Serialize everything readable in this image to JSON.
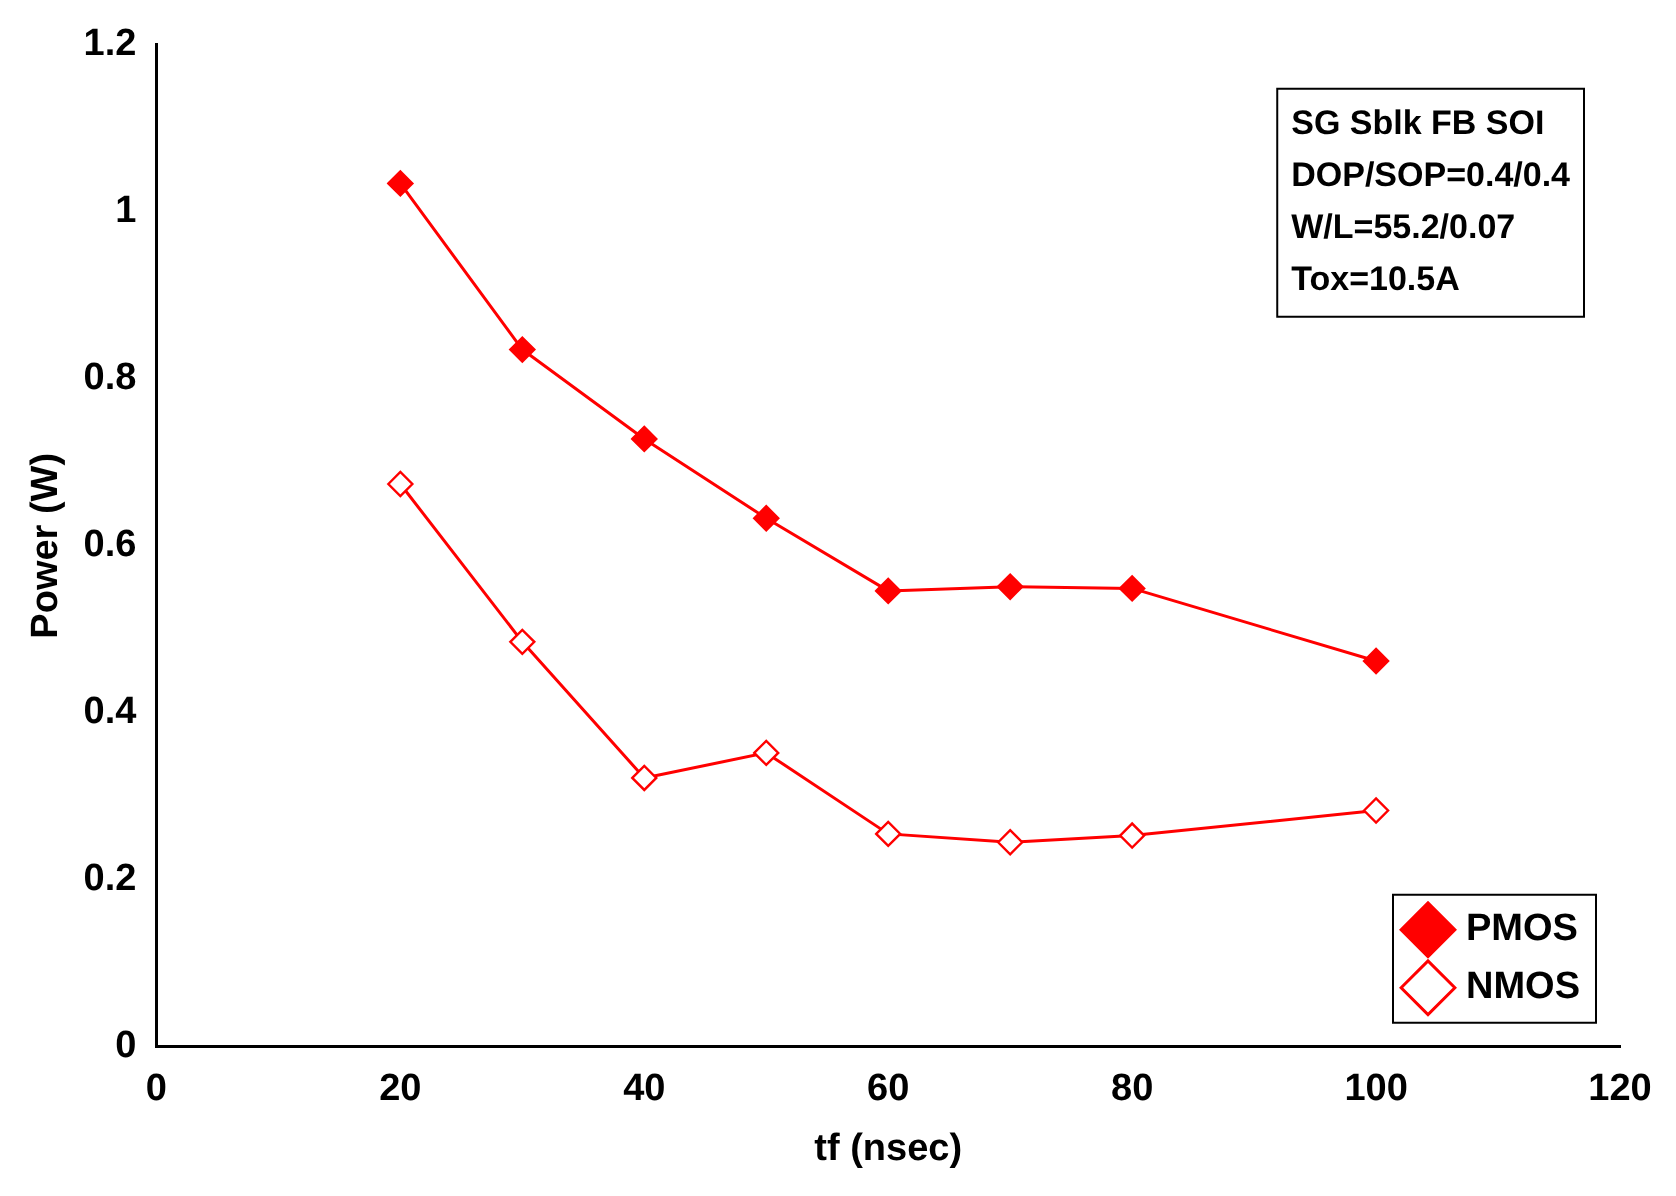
{
  "chart_data": {
    "type": "line",
    "xlabel": "tf (nsec)",
    "ylabel": "Power (W)",
    "x": [
      20,
      30,
      40,
      50,
      60,
      70,
      80,
      100
    ],
    "series": [
      {
        "name": "PMOS",
        "color": "#ff0000",
        "values": [
          1.034,
          0.835,
          0.728,
          0.633,
          0.546,
          0.551,
          0.549,
          0.462
        ]
      },
      {
        "name": "NMOS",
        "color": "#ff0000",
        "values": [
          0.674,
          0.485,
          0.322,
          0.352,
          0.255,
          0.245,
          0.253,
          0.283
        ]
      }
    ],
    "xlim": [
      0,
      120
    ],
    "xticks": [
      0,
      20,
      40,
      60,
      80,
      100,
      120
    ],
    "ylim": [
      0,
      1.2
    ],
    "yticks": [
      0,
      0.2,
      0.4,
      0.6,
      0.8,
      1,
      1.2
    ],
    "annotations": [
      "SG Sblk FB SOI",
      "DOP/SOP=0.4/0.4",
      "W/L=55.2/0.07",
      "Tox=10.5A"
    ],
    "legend": "bottom right",
    "marker": "diamond",
    "grid": false
  }
}
